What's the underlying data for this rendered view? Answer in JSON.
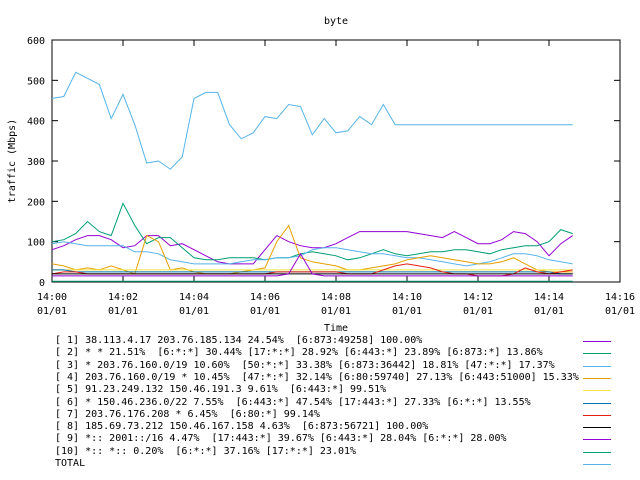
{
  "chart_data": {
    "type": "line",
    "title": "byte",
    "xlabel": "Time",
    "ylabel": "traffic (Mbps)",
    "ylim": [
      0,
      600
    ],
    "yticks": [
      "0",
      "100",
      "200",
      "300",
      "400",
      "500",
      "600"
    ],
    "xlim": [
      "14:00",
      "14:16"
    ],
    "xticks": [
      {
        "time": "14:00",
        "date": "01/01"
      },
      {
        "time": "14:02",
        "date": "01/01"
      },
      {
        "time": "14:04",
        "date": "01/01"
      },
      {
        "time": "14:06",
        "date": "01/01"
      },
      {
        "time": "14:08",
        "date": "01/01"
      },
      {
        "time": "14:10",
        "date": "01/01"
      },
      {
        "time": "14:12",
        "date": "01/01"
      },
      {
        "time": "14:14",
        "date": "01/01"
      },
      {
        "time": "14:16",
        "date": "01/01"
      }
    ],
    "grid": false,
    "legend_position": "bottom",
    "x": [
      "14:00:00",
      "14:00:20",
      "14:00:40",
      "14:01:00",
      "14:01:20",
      "14:01:40",
      "14:02:00",
      "14:02:20",
      "14:02:40",
      "14:03:00",
      "14:03:20",
      "14:03:40",
      "14:04:00",
      "14:04:20",
      "14:04:40",
      "14:05:00",
      "14:05:20",
      "14:05:40",
      "14:06:00",
      "14:06:20",
      "14:06:40",
      "14:07:00",
      "14:07:20",
      "14:07:40",
      "14:08:00",
      "14:08:20",
      "14:08:40",
      "14:09:00",
      "14:09:20",
      "14:09:40",
      "14:10:00",
      "14:10:20",
      "14:10:40",
      "14:11:00",
      "14:11:20",
      "14:11:40",
      "14:12:00",
      "14:12:20",
      "14:12:40",
      "14:13:00",
      "14:13:20",
      "14:13:40",
      "14:14:00",
      "14:14:20",
      "14:14:40"
    ],
    "series": [
      {
        "name": "[ 1] 38.113.4.17 203.76.185.134 24.54%  [6:873:49258] 100.00%",
        "color": "#9400d3",
        "values": [
          80,
          90,
          105,
          115,
          115,
          105,
          85,
          90,
          115,
          115,
          90,
          95,
          80,
          65,
          50,
          45,
          45,
          45,
          80,
          115,
          100,
          90,
          85,
          85,
          95,
          110,
          125,
          125,
          125,
          125,
          125,
          120,
          115,
          110,
          125,
          110,
          95,
          95,
          105,
          125,
          120,
          100,
          65,
          95,
          115
        ]
      },
      {
        "name": "[ 2] * * 21.51%  [6:*:*] 30.44% [17:*:*] 28.92% [6:443:*] 23.89% [6:873:*] 13.86%",
        "color": "#009e73",
        "values": [
          100,
          105,
          120,
          150,
          125,
          115,
          195,
          140,
          95,
          110,
          110,
          85,
          60,
          55,
          55,
          60,
          60,
          60,
          55,
          60,
          60,
          70,
          75,
          70,
          65,
          55,
          60,
          70,
          80,
          70,
          65,
          70,
          75,
          75,
          80,
          80,
          75,
          70,
          80,
          85,
          90,
          90,
          100,
          130,
          120
        ]
      },
      {
        "name": "[ 3] * 203.76.160.0/19 10.60%  [50:*:*] 33.38% [6:873:36442] 18.81% [47:*:*] 17.37%",
        "color": "#56b4e9",
        "values": [
          95,
          100,
          95,
          90,
          90,
          90,
          90,
          75,
          75,
          70,
          55,
          50,
          45,
          45,
          45,
          45,
          50,
          55,
          55,
          60,
          60,
          65,
          80,
          85,
          85,
          80,
          75,
          70,
          70,
          65,
          60,
          60,
          55,
          50,
          45,
          40,
          45,
          50,
          60,
          70,
          70,
          65,
          55,
          50,
          45
        ]
      },
      {
        "name": "[ 4] 203.76.160.0/19 * 10.45%  [47:*:*] 32.14% [6:80:59740] 27.13% [6:443:51000] 15.33%",
        "color": "#e69f00",
        "values": [
          45,
          40,
          30,
          35,
          30,
          40,
          30,
          20,
          115,
          100,
          30,
          35,
          25,
          20,
          20,
          20,
          25,
          30,
          35,
          100,
          140,
          60,
          50,
          45,
          40,
          30,
          30,
          35,
          40,
          45,
          55,
          60,
          65,
          60,
          55,
          50,
          45,
          45,
          50,
          60,
          45,
          30,
          25,
          25,
          25
        ]
      },
      {
        "name": "[ 5] 91.23.249.132 150.46.191.3 9.61%  [6:443:*] 99.51%",
        "color": "#f0e442",
        "values": [
          30,
          30,
          30,
          30,
          30,
          30,
          30,
          30,
          30,
          30,
          30,
          30,
          30,
          30,
          30,
          30,
          30,
          30,
          30,
          30,
          30,
          30,
          30,
          30,
          30,
          30,
          30,
          30,
          30,
          30,
          30,
          30,
          30,
          30,
          30,
          30,
          30,
          30,
          30,
          30,
          30,
          30,
          30,
          30,
          30
        ]
      },
      {
        "name": "[ 6] * 150.46.236.0/22 7.55%  [6:443:*] 47.54% [17:443:*] 27.33% [6:*:*] 13.55%",
        "color": "#0072b2",
        "values": [
          30,
          30,
          25,
          25,
          25,
          25,
          25,
          25,
          25,
          25,
          25,
          25,
          25,
          25,
          25,
          25,
          25,
          25,
          25,
          25,
          25,
          25,
          25,
          25,
          25,
          25,
          25,
          25,
          25,
          25,
          25,
          25,
          25,
          25,
          25,
          25,
          25,
          25,
          25,
          25,
          25,
          25,
          25,
          20,
          20
        ]
      },
      {
        "name": "[ 7] 203.76.176.208 * 6.45%  [6:80:*] 99.14%",
        "color": "#e51e10",
        "values": [
          20,
          25,
          25,
          20,
          20,
          20,
          20,
          20,
          20,
          20,
          20,
          20,
          20,
          20,
          20,
          20,
          20,
          20,
          20,
          25,
          25,
          25,
          25,
          25,
          25,
          20,
          20,
          20,
          30,
          40,
          45,
          40,
          35,
          25,
          20,
          20,
          15,
          15,
          15,
          20,
          35,
          25,
          20,
          25,
          30
        ]
      },
      {
        "name": "[ 8] 185.69.73.212 150.46.167.158 4.63%  [6:873:56721] 100.00%",
        "color": "#000000",
        "values": [
          20,
          20,
          20,
          20,
          20,
          20,
          20,
          20,
          20,
          20,
          20,
          20,
          20,
          20,
          20,
          20,
          20,
          20,
          20,
          20,
          20,
          20,
          20,
          20,
          20,
          20,
          20,
          20,
          20,
          20,
          20,
          20,
          20,
          20,
          20,
          20,
          20,
          20,
          20,
          20,
          20,
          20,
          20,
          20,
          20
        ]
      },
      {
        "name": "[ 9] *:: 2001::/16 4.47%  [17:443:*] 39.67% [6:443:*] 28.04% [6:*:*] 28.00%",
        "color": "#9400d3",
        "values": [
          15,
          15,
          15,
          15,
          15,
          15,
          15,
          15,
          15,
          15,
          15,
          15,
          15,
          15,
          15,
          15,
          15,
          15,
          15,
          15,
          20,
          70,
          20,
          15,
          15,
          15,
          15,
          15,
          15,
          15,
          15,
          15,
          15,
          15,
          15,
          15,
          15,
          15,
          15,
          15,
          15,
          15,
          15,
          15,
          15
        ]
      },
      {
        "name": "[10] *:: *:: 0.20%  [6:*:*] 37.16% [17:*:*] 23.01%",
        "color": "#009e73",
        "values": [
          2,
          2,
          2,
          2,
          2,
          2,
          2,
          2,
          2,
          2,
          2,
          2,
          2,
          2,
          2,
          2,
          2,
          2,
          2,
          2,
          2,
          2,
          2,
          2,
          2,
          2,
          2,
          2,
          2,
          2,
          2,
          2,
          2,
          2,
          2,
          2,
          2,
          2,
          2,
          2,
          2,
          2,
          2,
          2,
          2
        ]
      },
      {
        "name": "TOTAL",
        "color": "#56b4e9",
        "values": [
          455,
          460,
          520,
          505,
          490,
          405,
          465,
          390,
          295,
          300,
          280,
          310,
          455,
          470,
          470,
          390,
          355,
          370,
          410,
          405,
          440,
          435,
          365,
          405,
          370,
          375,
          410,
          390,
          440,
          390,
          390,
          390,
          390,
          390,
          390,
          390,
          390,
          390,
          390,
          390,
          390,
          390,
          390,
          390,
          390
        ]
      }
    ]
  }
}
